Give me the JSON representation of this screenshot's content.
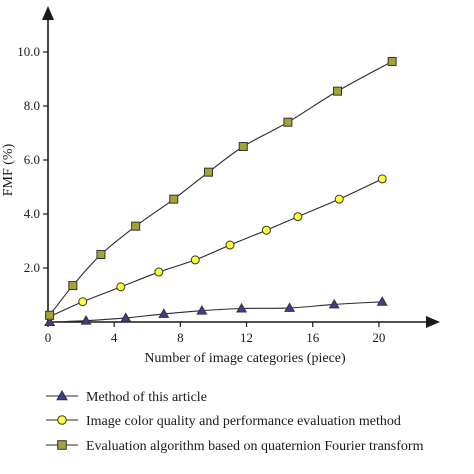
{
  "colors": {
    "axis": "#1a1a1a",
    "line": "#2a2a2a",
    "triangle_fill": "#3b3f8f",
    "circle_fill": "#ffff33",
    "square_fill": "#a8a234",
    "marker_stroke": "#333333"
  },
  "chart_data": {
    "type": "line",
    "xlabel": "Number of image categories (piece)",
    "ylabel": "FMF (%)",
    "xlim": [
      0,
      22
    ],
    "ylim": [
      0,
      11
    ],
    "x_ticks": [
      0,
      4,
      8,
      12,
      16,
      20
    ],
    "x_tick_labels": [
      "0",
      "4",
      "8",
      "12",
      "16",
      "20"
    ],
    "y_ticks": [
      2,
      4,
      6,
      8,
      10
    ],
    "y_tick_labels": [
      "2.0",
      "4.0",
      "6.0",
      "8.0",
      "10.0"
    ],
    "grid": false,
    "legend_position": "bottom",
    "series": [
      {
        "name": "Method of this article",
        "marker": "triangle",
        "x": [
          0.1,
          2.3,
          4.7,
          7.0,
          9.3,
          11.7,
          14.6,
          17.3,
          20.2
        ],
        "y": [
          0.0,
          0.05,
          0.15,
          0.3,
          0.42,
          0.5,
          0.52,
          0.65,
          0.75
        ]
      },
      {
        "name": "Image color quality and performance evaluation method",
        "marker": "circle",
        "x": [
          0.1,
          2.1,
          4.4,
          6.7,
          8.9,
          11.0,
          13.2,
          15.1,
          17.6,
          20.2
        ],
        "y": [
          0.2,
          0.75,
          1.3,
          1.85,
          2.3,
          2.85,
          3.4,
          3.9,
          4.55,
          5.3
        ]
      },
      {
        "name": "Evaluation algorithm based on quaternion Fourier transform",
        "marker": "square",
        "x": [
          0.1,
          1.5,
          3.2,
          5.3,
          7.6,
          9.7,
          11.8,
          14.5,
          17.5,
          20.8
        ],
        "y": [
          0.25,
          1.35,
          2.5,
          3.55,
          4.55,
          5.55,
          6.5,
          7.4,
          8.55,
          9.65
        ]
      }
    ]
  }
}
